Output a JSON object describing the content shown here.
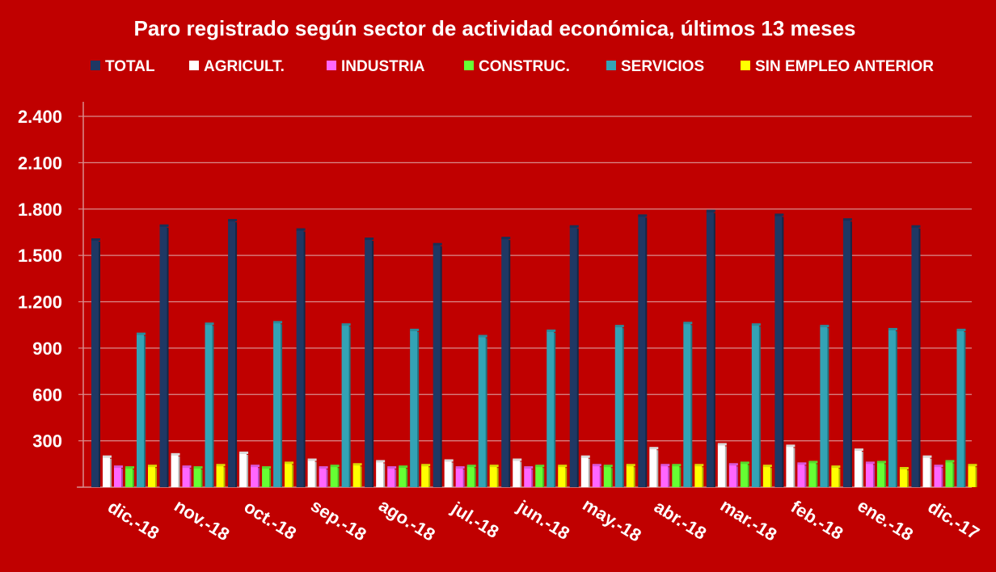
{
  "chart_data": {
    "type": "bar",
    "title": "Paro registrado según sector de actividad económica, últimos 13 meses",
    "xlabel": "",
    "ylabel": "",
    "ylim": [
      0,
      2400
    ],
    "yticks": [
      0,
      300,
      600,
      900,
      1200,
      1500,
      1800,
      2100,
      2400
    ],
    "ytick_labels": [
      "",
      "300",
      "600",
      "900",
      "1.200",
      "1.500",
      "1.800",
      "2.100",
      "2.400"
    ],
    "grid": true,
    "legend_position": "top",
    "categories": [
      "dic.-18",
      "nov.-18",
      "oct.-18",
      "sep.-18",
      "ago.-18",
      "jul.-18",
      "jun.-18",
      "may.-18",
      "abr.-18",
      "mar.-18",
      "feb.-18",
      "ene.-18",
      "dic.-17"
    ],
    "series": [
      {
        "name": "TOTAL",
        "color": "#1F3864",
        "values": [
          1600,
          1690,
          1725,
          1665,
          1605,
          1570,
          1610,
          1685,
          1755,
          1785,
          1760,
          1730,
          1685
        ]
      },
      {
        "name": "AGRICULT.",
        "color": "#FFFFFF",
        "values": [
          195,
          210,
          220,
          175,
          165,
          170,
          175,
          195,
          250,
          275,
          265,
          240,
          195
        ]
      },
      {
        "name": "INDUSTRIA",
        "color": "#FF66FF",
        "values": [
          130,
          130,
          135,
          125,
          125,
          125,
          125,
          140,
          140,
          145,
          150,
          155,
          135
        ]
      },
      {
        "name": "CONSTRUC.",
        "color": "#66FF33",
        "values": [
          125,
          125,
          125,
          135,
          130,
          135,
          135,
          135,
          140,
          155,
          160,
          160,
          165
        ]
      },
      {
        "name": "SERVICIOS",
        "color": "#33A3B5",
        "values": [
          990,
          1055,
          1065,
          1050,
          1015,
          975,
          1010,
          1040,
          1060,
          1050,
          1040,
          1020,
          1015
        ]
      },
      {
        "name": "SIN EMPLEO ANTERIOR",
        "color": "#FFFF00",
        "values": [
          135,
          140,
          155,
          145,
          140,
          135,
          135,
          140,
          140,
          135,
          130,
          120,
          140
        ]
      }
    ]
  }
}
